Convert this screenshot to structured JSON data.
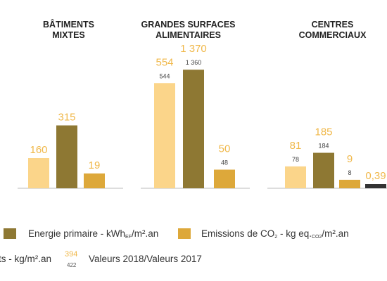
{
  "colors": {
    "light": "#fbd58a",
    "olive": "#8e7833",
    "gold": "#dda83a",
    "dark": "#333333",
    "value_2018": "#f0b84a",
    "value_2017": "#444444",
    "axis": "#bbbbbb"
  },
  "chart_data": {
    "type": "bar",
    "groups": [
      {
        "title": "BÂTIMENTS\nMIXTES",
        "bars": [
          {
            "series": "light",
            "value": 160,
            "label_2018": "160",
            "label_2017": ""
          },
          {
            "series": "olive",
            "value": 315,
            "label_2018": "315",
            "label_2017": ""
          },
          {
            "series": "gold",
            "value": 19,
            "label_2018": "19",
            "label_2017": ""
          }
        ]
      },
      {
        "title": "GRANDES SURFACES\nALIMENTAIRES",
        "bars": [
          {
            "series": "light",
            "value": 554,
            "label_2018": "554",
            "label_2017": "544"
          },
          {
            "series": "olive",
            "value": 1370,
            "label_2018": "1 370",
            "label_2017": "1 360"
          },
          {
            "series": "gold",
            "value": 50,
            "label_2018": "50",
            "label_2017": "48"
          }
        ]
      },
      {
        "title": "CENTRES\nCOMMERCIAUX",
        "bars": [
          {
            "series": "light",
            "value": 81,
            "label_2018": "81",
            "label_2017": "78"
          },
          {
            "series": "olive",
            "value": 185,
            "label_2018": "185",
            "label_2017": "184"
          },
          {
            "series": "gold",
            "value": 9,
            "label_2018": "9",
            "label_2017": "8"
          },
          {
            "series": "dark",
            "value": 0.39,
            "label_2018": "0,39",
            "label_2017": ""
          }
        ]
      }
    ]
  },
  "legend": {
    "energie": {
      "text": "Energie primaire - kWh",
      "sub": "EF",
      "tail": "/m².an"
    },
    "emissions": {
      "text": "Emissions de CO",
      "sub": "2",
      "mid": " - kg eq.",
      "sub2": "CO2",
      "tail": "/m².an"
    },
    "dechets": {
      "text": "ts - kg/m².an"
    },
    "example": {
      "big": "394",
      "small": "422",
      "text": "Valeurs 2018/Valeurs 2017"
    }
  }
}
